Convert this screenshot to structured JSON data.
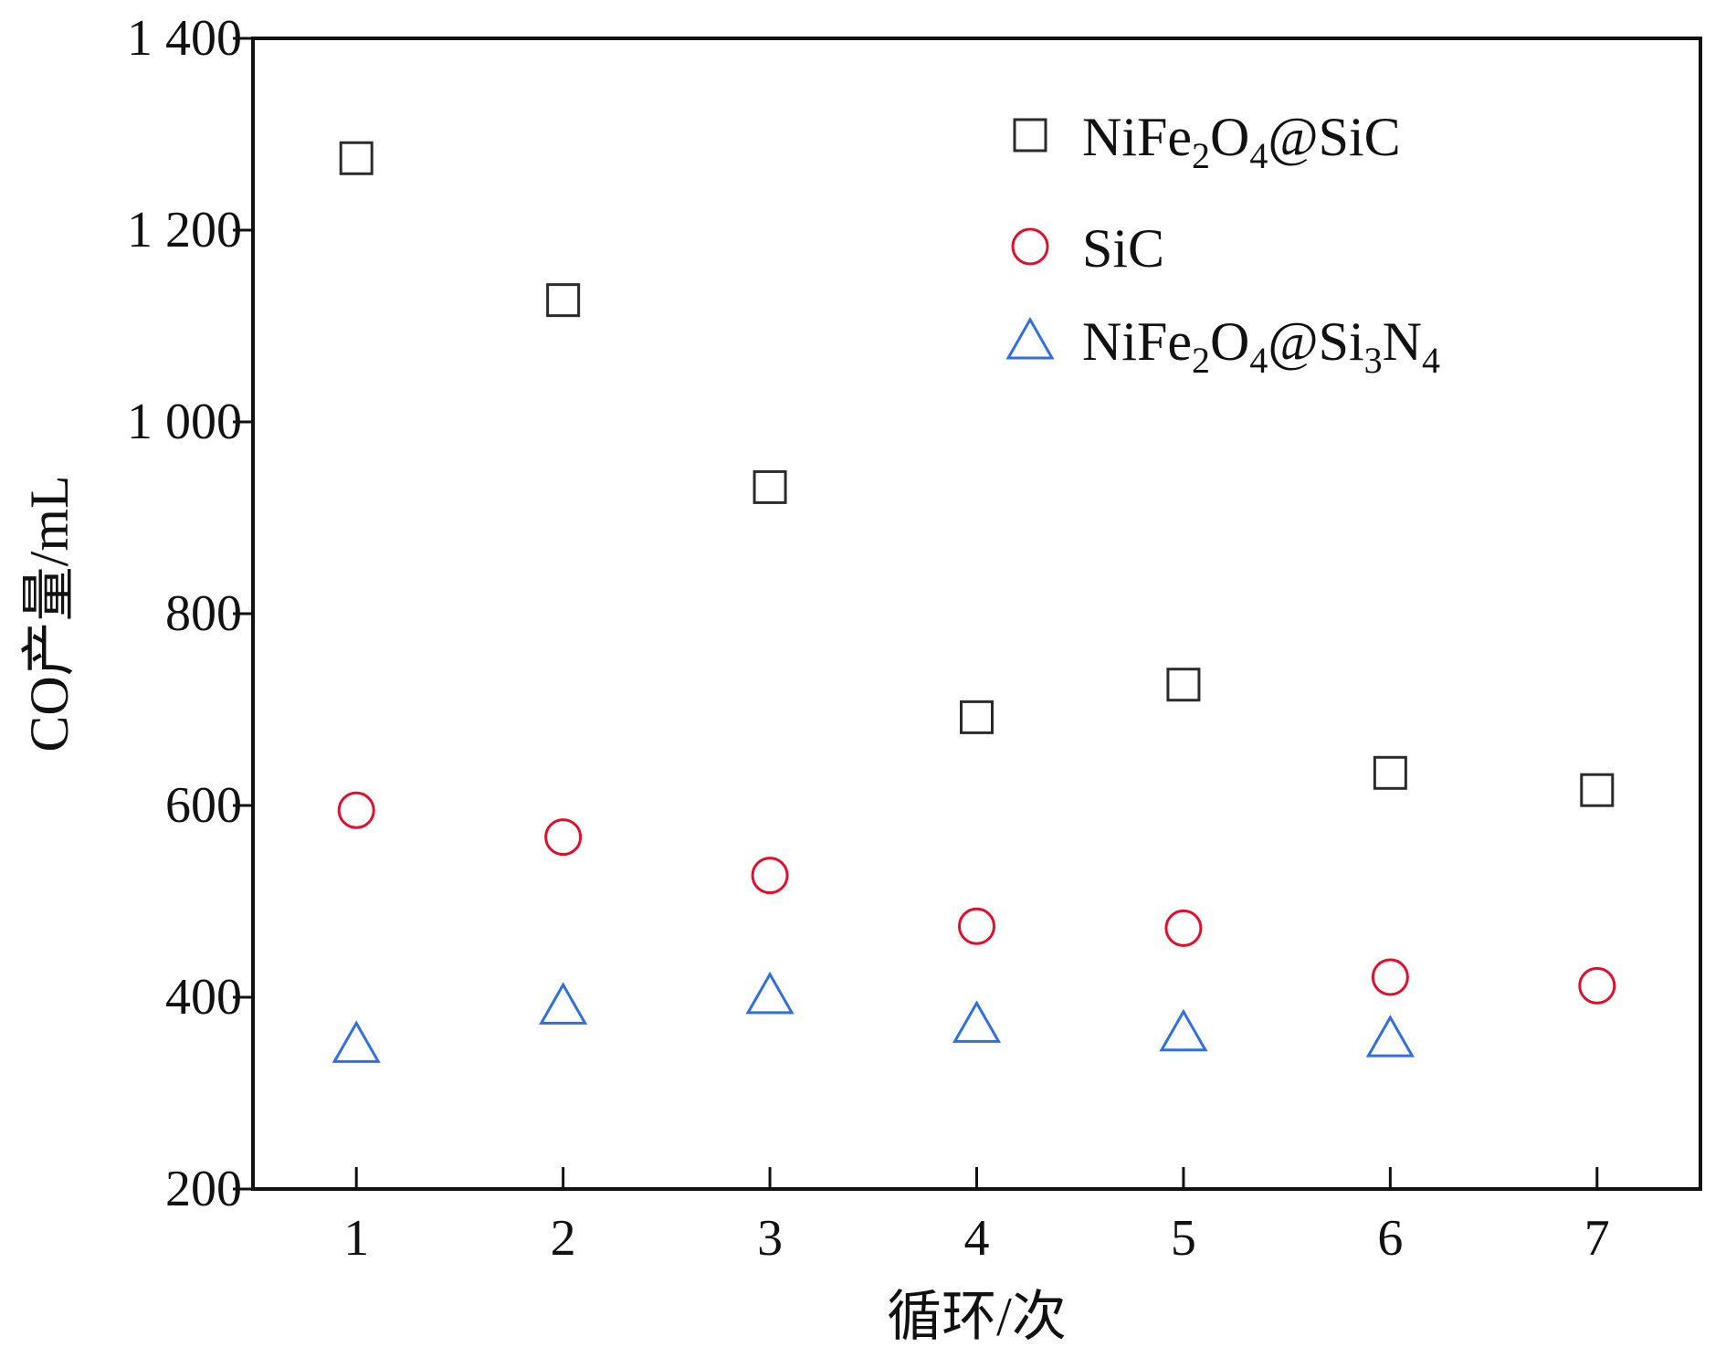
{
  "chart_data": {
    "type": "scatter",
    "title": "",
    "xlabel": "循环/次",
    "ylabel": "CO产量/mL",
    "xlim": [
      0.5,
      7.5
    ],
    "ylim": [
      200,
      1400
    ],
    "x_ticks": [
      1,
      2,
      3,
      4,
      5,
      6,
      7
    ],
    "y_ticks": [
      200,
      400,
      600,
      800,
      1000,
      1200,
      1400
    ],
    "y_tick_labels": [
      "200",
      "400",
      "600",
      "800",
      "1 000",
      "1 200",
      "1 400"
    ],
    "grid": false,
    "legend_position": "top-right",
    "series": [
      {
        "name": "NiFe2O4@SiC",
        "legend_parts": [
          {
            "text": "NiFe",
            "sub": false
          },
          {
            "text": "2",
            "sub": true
          },
          {
            "text": "O",
            "sub": false
          },
          {
            "text": "4",
            "sub": true
          },
          {
            "text": "@SiC",
            "sub": false
          }
        ],
        "marker": "square",
        "color": "#2b2b2b",
        "x": [
          1,
          2,
          3,
          4,
          5,
          6,
          7
        ],
        "y": [
          1275,
          1127,
          932,
          692,
          726,
          634,
          616
        ]
      },
      {
        "name": "SiC",
        "legend_parts": [
          {
            "text": "SiC",
            "sub": false
          }
        ],
        "marker": "circle",
        "color": "#e0102c",
        "x": [
          1,
          2,
          3,
          4,
          5,
          6,
          7
        ],
        "y": [
          595,
          567,
          527,
          474,
          472,
          421,
          412
        ]
      },
      {
        "name": "NiFe2O4@Si3N4",
        "legend_parts": [
          {
            "text": "NiFe",
            "sub": false
          },
          {
            "text": "2",
            "sub": true
          },
          {
            "text": "O",
            "sub": false
          },
          {
            "text": "4",
            "sub": true
          },
          {
            "text": "@Si",
            "sub": false
          },
          {
            "text": "3",
            "sub": true
          },
          {
            "text": "N",
            "sub": false
          },
          {
            "text": "4",
            "sub": true
          }
        ],
        "marker": "triangle",
        "color": "#2f6fe0",
        "x": [
          1,
          2,
          3,
          4,
          5,
          6
        ],
        "y": [
          352,
          392,
          403,
          373,
          364,
          358
        ]
      }
    ]
  }
}
